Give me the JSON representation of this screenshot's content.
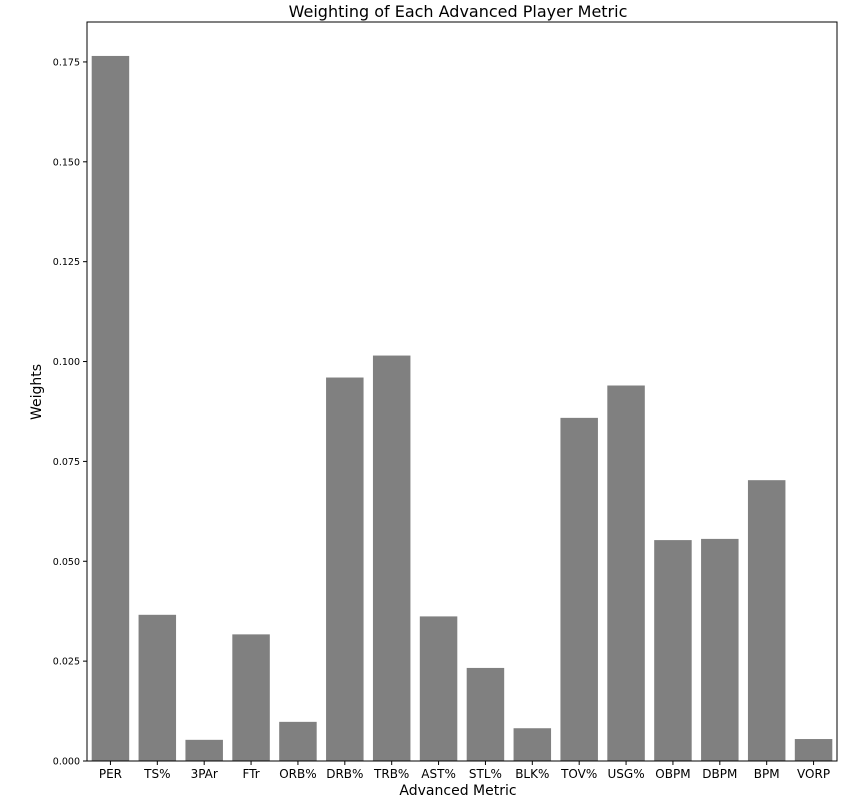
{
  "chart_data": {
    "type": "bar",
    "title": "Weighting of Each Advanced Player Metric",
    "xlabel": "Advanced Metric",
    "ylabel": "Weights",
    "categories": [
      "PER",
      "TS%",
      "3PAr",
      "FTr",
      "ORB%",
      "DRB%",
      "TRB%",
      "AST%",
      "STL%",
      "BLK%",
      "TOV%",
      "USG%",
      "OBPM",
      "DBPM",
      "BPM",
      "VORP"
    ],
    "values": [
      0.1765,
      0.0366,
      0.0053,
      0.0317,
      0.0098,
      0.096,
      0.1015,
      0.0362,
      0.0233,
      0.0082,
      0.0859,
      0.094,
      0.0553,
      0.0556,
      0.0703,
      0.0055
    ],
    "ylim": [
      0,
      0.185
    ],
    "yticks": [
      "0.000",
      "0.025",
      "0.050",
      "0.075",
      "0.100",
      "0.125",
      "0.150",
      "0.175"
    ],
    "ytick_values": [
      0,
      0.025,
      0.05,
      0.075,
      0.1,
      0.125,
      0.15,
      0.175
    ],
    "grid": false,
    "bar_color": "#808080"
  }
}
